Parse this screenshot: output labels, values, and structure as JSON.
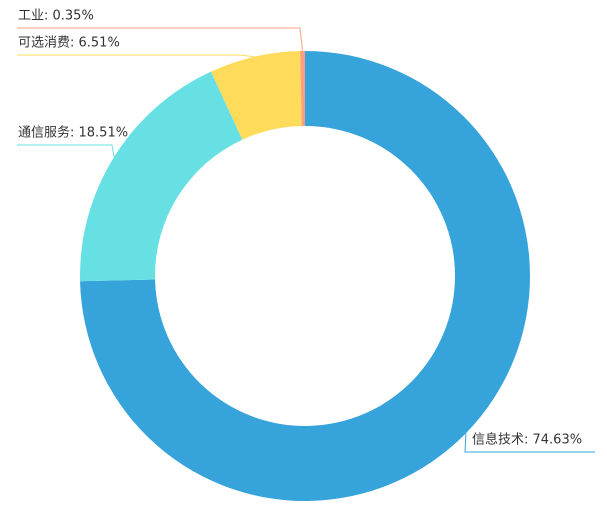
{
  "chart_data": {
    "type": "pie",
    "values": [
      74.63,
      18.51,
      6.51,
      0.35
    ],
    "value_labels": [
      "信息技术: 74.63%",
      "通信服务: 18.51%",
      "可选消费: 6.51%",
      "工业: 0.35%"
    ],
    "colors": [
      "#36a3db",
      "#67e0e3",
      "#ffdb5c",
      "#ff9f7f"
    ]
  }
}
